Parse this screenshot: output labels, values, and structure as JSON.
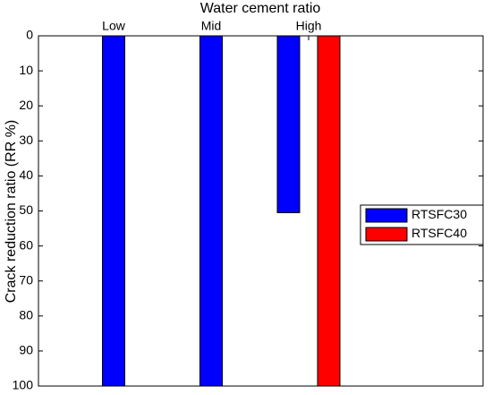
{
  "chart_data": {
    "type": "bar",
    "title": "Water cement ratio",
    "y_label": "Crack reduction ratio (RR %)",
    "categories": [
      "Low",
      "Mid",
      "High"
    ],
    "series": [
      {
        "name": "RTSFC30",
        "color": "#0000ff",
        "values": [
          100,
          100,
          50.5
        ]
      },
      {
        "name": "RTSFC40",
        "color": "#ff0000",
        "values": [
          null,
          null,
          100
        ]
      }
    ],
    "ylim": [
      0,
      100
    ],
    "yticks": [
      0,
      10,
      20,
      30,
      40,
      50,
      60,
      70,
      80,
      90,
      100
    ],
    "y_reversed": true,
    "x_axis_location": "top",
    "legend": "right"
  }
}
